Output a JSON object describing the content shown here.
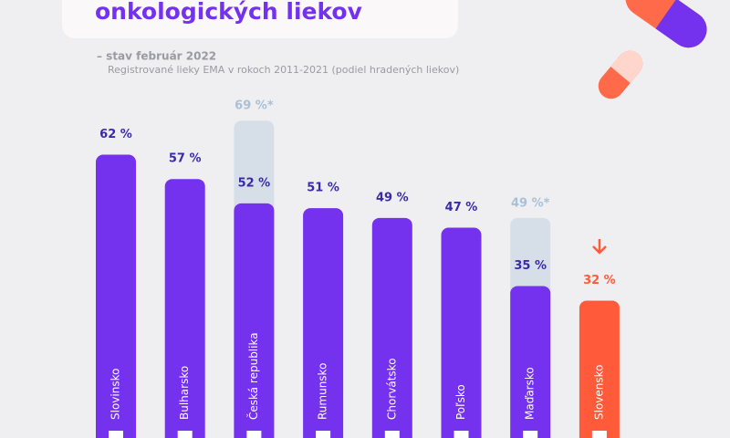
{
  "chart_data": {
    "type": "bar",
    "title": "onkologických liekov",
    "subtitle": "– stav február 2022",
    "note": "Registrované lieky EMA v rokoch 2011-2021 (podiel hradených liekov)",
    "categories": [
      "Slovinsko",
      "Bulharsko",
      "Česká republika",
      "Rumunsko",
      "Chorvátsko",
      "Poľsko",
      "Maďarsko",
      "Slovensko"
    ],
    "values": [
      62,
      57,
      52,
      51,
      49,
      47,
      35,
      32
    ],
    "value_labels": [
      "62 %",
      "57 %",
      "52 %",
      "51 %",
      "49 %",
      "47 %",
      "35 %",
      "32 %"
    ],
    "colors": [
      "#7431ee",
      "#7431ee",
      "#7431ee",
      "#7431ee",
      "#7431ee",
      "#7431ee",
      "#7431ee",
      "#ff5b3a"
    ],
    "extra_values": [
      null,
      null,
      69,
      null,
      null,
      null,
      49,
      null
    ],
    "extra_value_labels": [
      null,
      null,
      "69 %*",
      null,
      null,
      null,
      "49 %*",
      null
    ],
    "extra_color": "#d6dfe8"
  }
}
